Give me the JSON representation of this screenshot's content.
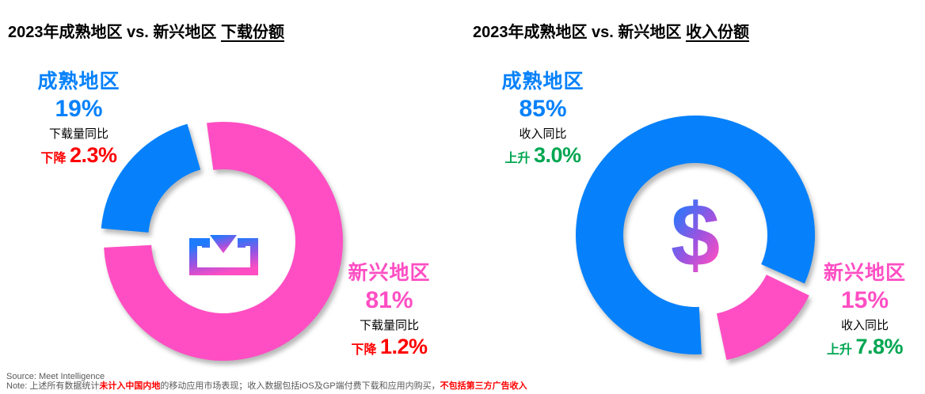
{
  "colors": {
    "blue": "#0681fb",
    "pink": "#ff4ec3",
    "red": "#ff0000",
    "green": "#00a651",
    "gray": "#595959",
    "gradient_purple": "#9b53e0"
  },
  "charts": [
    {
      "title_prefix": "2023年成熟地区 vs. 新兴地区 ",
      "title_suffix": "下载份额",
      "center_icon": "download-icon",
      "mature": {
        "name": "成熟地区",
        "share": "19%",
        "metric": "下载量同比",
        "direction": "下降",
        "change": "2.3%"
      },
      "emerging": {
        "name": "新兴地区",
        "share": "81%",
        "metric": "下载量同比",
        "direction": "下降",
        "change": "1.2%"
      }
    },
    {
      "title_prefix": "2023年成熟地区 vs. 新兴地区 ",
      "title_suffix": "收入份额",
      "center_icon": "dollar-icon",
      "mature": {
        "name": "成熟地区",
        "share": "85%",
        "metric": "收入同比",
        "direction": "上升",
        "change": "3.0%"
      },
      "emerging": {
        "name": "新兴地区",
        "share": "15%",
        "metric": "收入同比",
        "direction": "上升",
        "change": "7.8%"
      }
    }
  ],
  "chart_data": [
    {
      "type": "pie",
      "donut": true,
      "title": "2023年成熟地区 vs. 新兴地区 下载份额",
      "categories": [
        "成熟地区",
        "新兴地区"
      ],
      "values": [
        19,
        81
      ],
      "annotations": [
        "下载量同比 下降 2.3%",
        "下载量同比 下降 1.2%"
      ],
      "legend_position": "around-chart",
      "render": {
        "outer_radius": 151,
        "inner_radius": 91,
        "segments": [
          {
            "name": "mature",
            "color": "#0681fb",
            "start": 275,
            "end": 344,
            "explode": 5
          },
          {
            "name": "emerging",
            "color": "#ff4ec3",
            "start": 352,
            "end": 627,
            "explode": 0
          }
        ]
      }
    },
    {
      "type": "pie",
      "donut": true,
      "title": "2023年成熟地区 vs. 新兴地区 收入份额",
      "categories": [
        "成熟地区",
        "新兴地区"
      ],
      "values": [
        85,
        15
      ],
      "annotations": [
        "收入同比 上升 3.0%",
        "收入同比 上升 7.8%"
      ],
      "legend_position": "around-chart",
      "render": {
        "outer_radius": 151,
        "inner_radius": 91,
        "segments": [
          {
            "name": "mature",
            "color": "#0681fb",
            "start": 177,
            "end": 474,
            "explode": 0
          },
          {
            "name": "emerging",
            "color": "#ff4ec3",
            "start": 116,
            "end": 168,
            "explode": 13
          }
        ]
      }
    }
  ],
  "footer": {
    "source": "Source: Meet Intelligence",
    "note_prefix": "Note: 上述所有数据统计",
    "note_red1": "未计入中国内地",
    "note_middle": "的移动应用市场表现；收入数据包括iOS及GP端付费下载和应用内购买，",
    "note_red2": "不包括第三方广告收入"
  }
}
